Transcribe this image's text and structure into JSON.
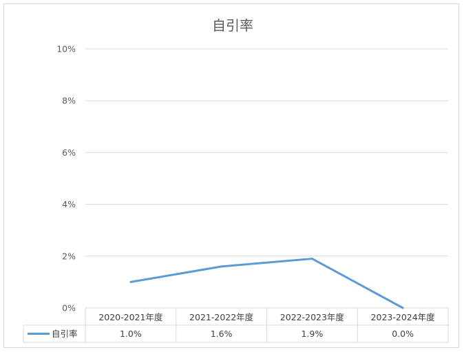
{
  "chart_data": {
    "type": "line",
    "title": "自引率",
    "categories": [
      "2020-2021年度",
      "2021-2022年度",
      "2022-2023年度",
      "2023-2024年度"
    ],
    "series": [
      {
        "name": "自引率",
        "values": [
          1.0,
          1.6,
          1.9,
          0.0
        ],
        "value_labels": [
          "1.0%",
          "1.6%",
          "1.9%",
          "0.0%"
        ],
        "color": "#5b9bd5"
      }
    ],
    "ylim": [
      0,
      10
    ],
    "y_ticks": [
      0,
      2,
      4,
      6,
      8,
      10
    ],
    "y_tick_labels": [
      "0%",
      "2%",
      "4%",
      "6%",
      "8%",
      "10%"
    ],
    "grid": true,
    "legend": "data-table",
    "colors": {
      "gridline": "#d9d9d9",
      "text": "#595959",
      "frame": "#d9d9d9"
    }
  }
}
